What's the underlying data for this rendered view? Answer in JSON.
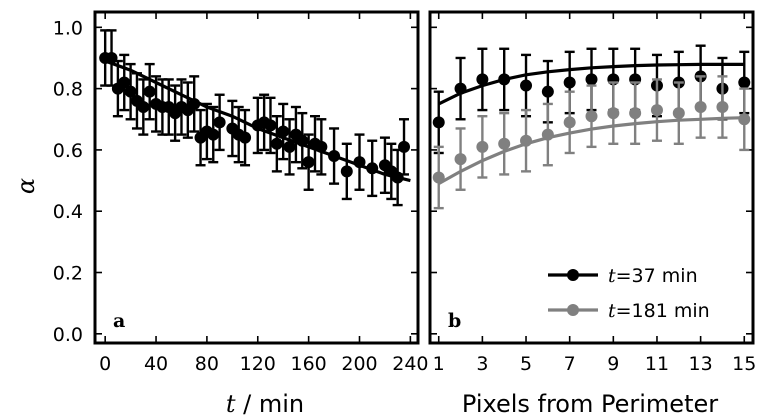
{
  "chart_data": [
    {
      "type": "scatter",
      "panel_label": "a",
      "xlabel_var": "t",
      "xlabel_unit": " / min",
      "ylabel": "α",
      "xlim": [
        -8,
        246
      ],
      "ylim": [
        -0.03,
        1.05
      ],
      "xticks": [
        "0",
        "40",
        "80",
        "120",
        "160",
        "200",
        "240"
      ],
      "yticks": [
        "0.0",
        "0.2",
        "0.4",
        "0.6",
        "0.8",
        "1.0"
      ],
      "color": "#000000",
      "series": [
        {
          "x": [
            0,
            5,
            10,
            15,
            20,
            25,
            30,
            35,
            40,
            45,
            50,
            55,
            60,
            65,
            70,
            75,
            80,
            85,
            90,
            100,
            105,
            110,
            120,
            125,
            130,
            135,
            140,
            145,
            150,
            155,
            160,
            165,
            170,
            180,
            190,
            200,
            210,
            220,
            225,
            230,
            235
          ],
          "y": [
            0.9,
            0.9,
            0.8,
            0.82,
            0.79,
            0.76,
            0.74,
            0.79,
            0.75,
            0.74,
            0.74,
            0.72,
            0.74,
            0.73,
            0.75,
            0.64,
            0.66,
            0.65,
            0.69,
            0.67,
            0.65,
            0.64,
            0.68,
            0.69,
            0.68,
            0.62,
            0.66,
            0.61,
            0.65,
            0.63,
            0.56,
            0.62,
            0.61,
            0.58,
            0.53,
            0.56,
            0.54,
            0.55,
            0.53,
            0.51,
            0.61
          ],
          "err": [
            0.09,
            0.09,
            0.09,
            0.09,
            0.09,
            0.09,
            0.09,
            0.09,
            0.09,
            0.09,
            0.09,
            0.09,
            0.09,
            0.09,
            0.09,
            0.09,
            0.09,
            0.09,
            0.09,
            0.09,
            0.09,
            0.09,
            0.09,
            0.09,
            0.09,
            0.09,
            0.09,
            0.09,
            0.09,
            0.09,
            0.09,
            0.09,
            0.09,
            0.09,
            0.09,
            0.09,
            0.09,
            0.09,
            0.09,
            0.09,
            0.09
          ],
          "fit": {
            "x": [
              0,
              20,
              40,
              60,
              80,
              100,
              120,
              140,
              160,
              180,
              200,
              220,
              240
            ],
            "y": [
              0.89,
              0.86,
              0.82,
              0.78,
              0.74,
              0.71,
              0.67,
              0.64,
              0.61,
              0.58,
              0.55,
              0.52,
              0.5
            ]
          }
        }
      ]
    },
    {
      "type": "scatter",
      "panel_label": "b",
      "xlabel": "Pixels from Perimeter",
      "xlim": [
        0.6,
        15.4
      ],
      "ylim": [
        -0.03,
        1.05
      ],
      "xticks": [
        "1",
        "3",
        "5",
        "7",
        "9",
        "11",
        "13",
        "15"
      ],
      "legend_position": "bottom-right",
      "series": [
        {
          "name_var": "t",
          "name_value": "=37 min",
          "color": "#000000",
          "x": [
            1,
            2,
            3,
            4,
            5,
            6,
            7,
            8,
            9,
            10,
            11,
            12,
            13,
            14,
            15
          ],
          "y": [
            0.69,
            0.8,
            0.83,
            0.83,
            0.81,
            0.79,
            0.82,
            0.83,
            0.83,
            0.83,
            0.81,
            0.82,
            0.84,
            0.8,
            0.82
          ],
          "err": [
            0.1,
            0.1,
            0.1,
            0.1,
            0.1,
            0.1,
            0.1,
            0.1,
            0.1,
            0.1,
            0.1,
            0.1,
            0.1,
            0.1,
            0.1
          ],
          "fit": {
            "x": [
              1,
              2,
              3,
              4,
              5,
              6,
              7,
              8,
              9,
              10,
              11,
              12,
              13,
              14,
              15
            ],
            "y": [
              0.75,
              0.785,
              0.81,
              0.83,
              0.845,
              0.855,
              0.862,
              0.868,
              0.872,
              0.875,
              0.877,
              0.878,
              0.879,
              0.879,
              0.879
            ]
          }
        },
        {
          "name_var": "t",
          "name_value": "=181 min",
          "color": "#808080",
          "x": [
            1,
            2,
            3,
            4,
            5,
            6,
            7,
            8,
            9,
            10,
            11,
            12,
            13,
            14,
            15
          ],
          "y": [
            0.51,
            0.57,
            0.61,
            0.62,
            0.63,
            0.65,
            0.69,
            0.71,
            0.72,
            0.72,
            0.73,
            0.72,
            0.74,
            0.74,
            0.7
          ],
          "err": [
            0.1,
            0.1,
            0.1,
            0.1,
            0.1,
            0.1,
            0.1,
            0.1,
            0.1,
            0.1,
            0.1,
            0.1,
            0.1,
            0.1,
            0.1
          ],
          "fit": {
            "x": [
              1,
              2,
              3,
              4,
              5,
              6,
              7,
              8,
              9,
              10,
              11,
              12,
              13,
              14,
              15
            ],
            "y": [
              0.49,
              0.53,
              0.565,
              0.595,
              0.62,
              0.64,
              0.655,
              0.668,
              0.678,
              0.686,
              0.692,
              0.697,
              0.7,
              0.703,
              0.705
            ]
          }
        }
      ]
    }
  ]
}
